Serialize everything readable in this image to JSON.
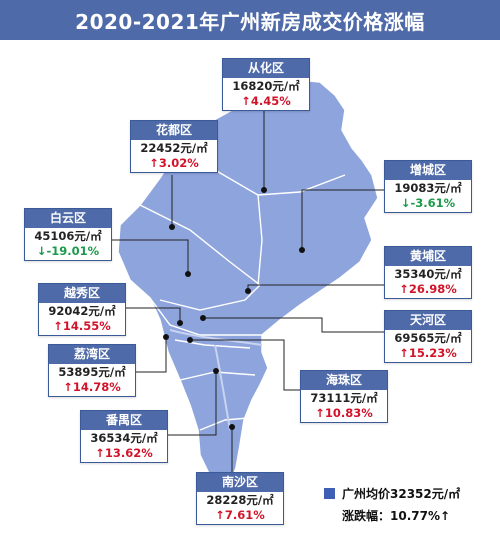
{
  "title": "2020-2021年广州新房成交价格涨幅",
  "colors": {
    "map_fill": "#8ea4dc",
    "title_bg": "#4f6aa8",
    "up": "#d2142a",
    "down": "#1a9a4a"
  },
  "districts": [
    {
      "name": "从化区",
      "price": "16820元/㎡",
      "change": "↑4.45%",
      "direction": "up"
    },
    {
      "name": "花都区",
      "price": "22452元/㎡",
      "change": "↑3.02%",
      "direction": "up"
    },
    {
      "name": "增城区",
      "price": "19083元/㎡",
      "change": "↓-3.61%",
      "direction": "down"
    },
    {
      "name": "白云区",
      "price": "45106元/㎡",
      "change": "↓-19.01%",
      "direction": "down"
    },
    {
      "name": "黄埔区",
      "price": "35340元/㎡",
      "change": "↑26.98%",
      "direction": "up"
    },
    {
      "name": "越秀区",
      "price": "92042元/㎡",
      "change": "↑14.55%",
      "direction": "up"
    },
    {
      "name": "天河区",
      "price": "69565元/㎡",
      "change": "↑15.23%",
      "direction": "up"
    },
    {
      "name": "荔湾区",
      "price": "53895元/㎡",
      "change": "↑14.78%",
      "direction": "up"
    },
    {
      "name": "海珠区",
      "price": "73111元/㎡",
      "change": "↑10.83%",
      "direction": "up"
    },
    {
      "name": "番禺区",
      "price": "36534元/㎡",
      "change": "↑13.62%",
      "direction": "up"
    },
    {
      "name": "南沙区",
      "price": "28228元/㎡",
      "change": "↑7.61%",
      "direction": "up"
    }
  ],
  "legend": {
    "average": "广州均价32352元/㎡",
    "change": "涨跌幅：10.77%↑"
  }
}
